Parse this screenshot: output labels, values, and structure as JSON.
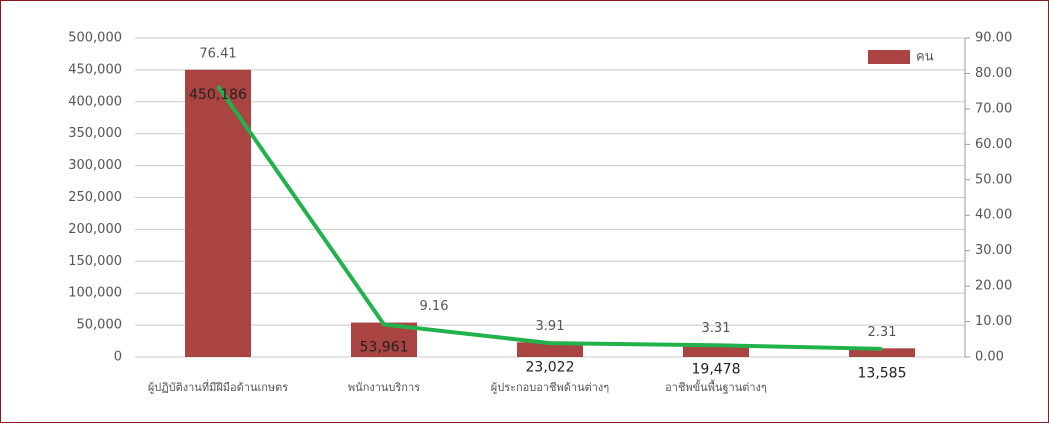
{
  "chart_data": {
    "type": "bar-line",
    "categories": [
      "ผู้ปฏิบัติงานที่มีฝีมือด้านเกษตร",
      "พนักงานบริการ",
      "ผู้ประกอบอาชีพด้านต่างๆ",
      "อาชีพขั้นพื้นฐานต่างๆ",
      null
    ],
    "series": [
      {
        "name": "คน",
        "type": "bar",
        "color": "#a94442",
        "axis": "y",
        "values": [
          450186,
          53961,
          23022,
          19478,
          13585
        ],
        "value_labels": [
          "450,186",
          "53,961",
          "23,022",
          "19,478",
          "13,585"
        ]
      },
      {
        "type": "line",
        "color": "#22b24c",
        "axis": "y2",
        "values": [
          76.41,
          9.16,
          3.91,
          3.31,
          2.31
        ]
      }
    ],
    "ylim": [
      0,
      500000
    ],
    "yticks": [
      {
        "value": 0,
        "label": "0"
      },
      {
        "value": 50000,
        "label": "50,000"
      },
      {
        "value": 100000,
        "label": "100,000"
      },
      {
        "value": 150000,
        "label": "150,000"
      },
      {
        "value": 200000,
        "label": "200,000"
      },
      {
        "value": 250000,
        "label": "250,000"
      },
      {
        "value": 300000,
        "label": "300,000"
      },
      {
        "value": 350000,
        "label": "350,000"
      },
      {
        "value": 400000,
        "label": "400,000"
      },
      {
        "value": 450000,
        "label": "450,000"
      },
      {
        "value": 500000,
        "label": "500,000"
      }
    ],
    "y2lim": [
      0,
      90
    ],
    "y2ticks": [
      {
        "value": 0,
        "label": "0.00"
      },
      {
        "value": 10,
        "label": "10.00"
      },
      {
        "value": 20,
        "label": "20.00"
      },
      {
        "value": 30,
        "label": "30.00"
      },
      {
        "value": 40,
        "label": "40.00"
      },
      {
        "value": 50,
        "label": "50.00"
      },
      {
        "value": 60,
        "label": "60.00"
      },
      {
        "value": 70,
        "label": "70.00"
      },
      {
        "value": 80,
        "label": "80.00"
      },
      {
        "value": 90,
        "label": "90.00"
      }
    ],
    "grid": true,
    "legend": "top-right"
  }
}
